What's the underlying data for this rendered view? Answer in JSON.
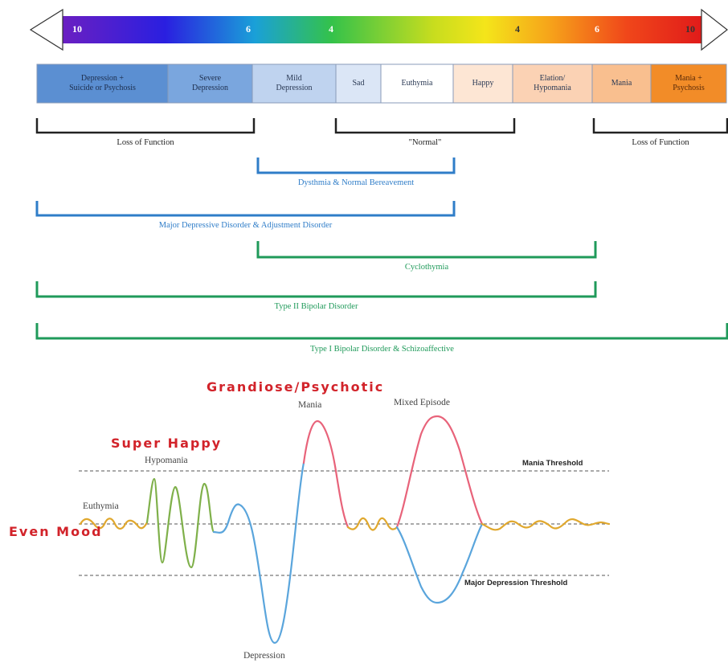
{
  "scale": {
    "numbers": [
      "10",
      "6",
      "4",
      "4",
      "6",
      "10"
    ],
    "number_colors": [
      "#ffffff",
      "#ffffff",
      "#ffffff",
      "#333333",
      "#ffffff",
      "#333333"
    ]
  },
  "mood_boxes": [
    {
      "label": "Depression +\nSuicide or Psychosis",
      "fill": "#5b8fd2"
    },
    {
      "label": "Severe\nDepression",
      "fill": "#7aa6de"
    },
    {
      "label": "Mild\nDepression",
      "fill": "#bfd3ef"
    },
    {
      "label": "Sad",
      "fill": "#dbe6f6"
    },
    {
      "label": "Euthymia",
      "fill": "#ffffff"
    },
    {
      "label": "Happy",
      "fill": "#fde6d4"
    },
    {
      "label": "Elation/\nHypomania",
      "fill": "#fbd2b4"
    },
    {
      "label": "Mania",
      "fill": "#f9bf8f"
    },
    {
      "label": "Mania +\nPsychosis",
      "fill": "#f28c28"
    }
  ],
  "top_brackets": [
    {
      "label": "Loss of Function",
      "color": "#222222"
    },
    {
      "label": "\"Normal\"",
      "color": "#222222"
    },
    {
      "label": "Loss of Function",
      "color": "#222222"
    }
  ],
  "range_brackets": [
    {
      "label": "Dysthmia & Normal Bereavement",
      "color": "#2f7dc8"
    },
    {
      "label": "Major Depressive Disorder & Adjustment Disorder",
      "color": "#2f7dc8"
    },
    {
      "label": "Cyclothymia",
      "color": "#1f9a5a"
    },
    {
      "label": "Type II Bipolar Disorder",
      "color": "#1f9a5a"
    },
    {
      "label": "Type I Bipolar Disorder & Schizoaffective",
      "color": "#1f9a5a"
    }
  ],
  "mood_chart": {
    "big_labels": {
      "grandiose": "Grandiose/Psychotic",
      "super_happy": "Super Happy",
      "even_mood": "Even Mood"
    },
    "wave_labels": {
      "euthymia": "Euthymia",
      "hypomania": "Hypomania",
      "mania": "Mania",
      "mixed": "Mixed Episode",
      "depression": "Depression"
    },
    "thresholds": {
      "mania": "Mania Threshold",
      "depression": "Major Depression Threshold"
    },
    "colors": {
      "euthymia": "#e0a82e",
      "hypomania": "#7fb04a",
      "mania": "#e8637a",
      "depression": "#5aa5dc",
      "big_label": "#d2232a"
    }
  }
}
